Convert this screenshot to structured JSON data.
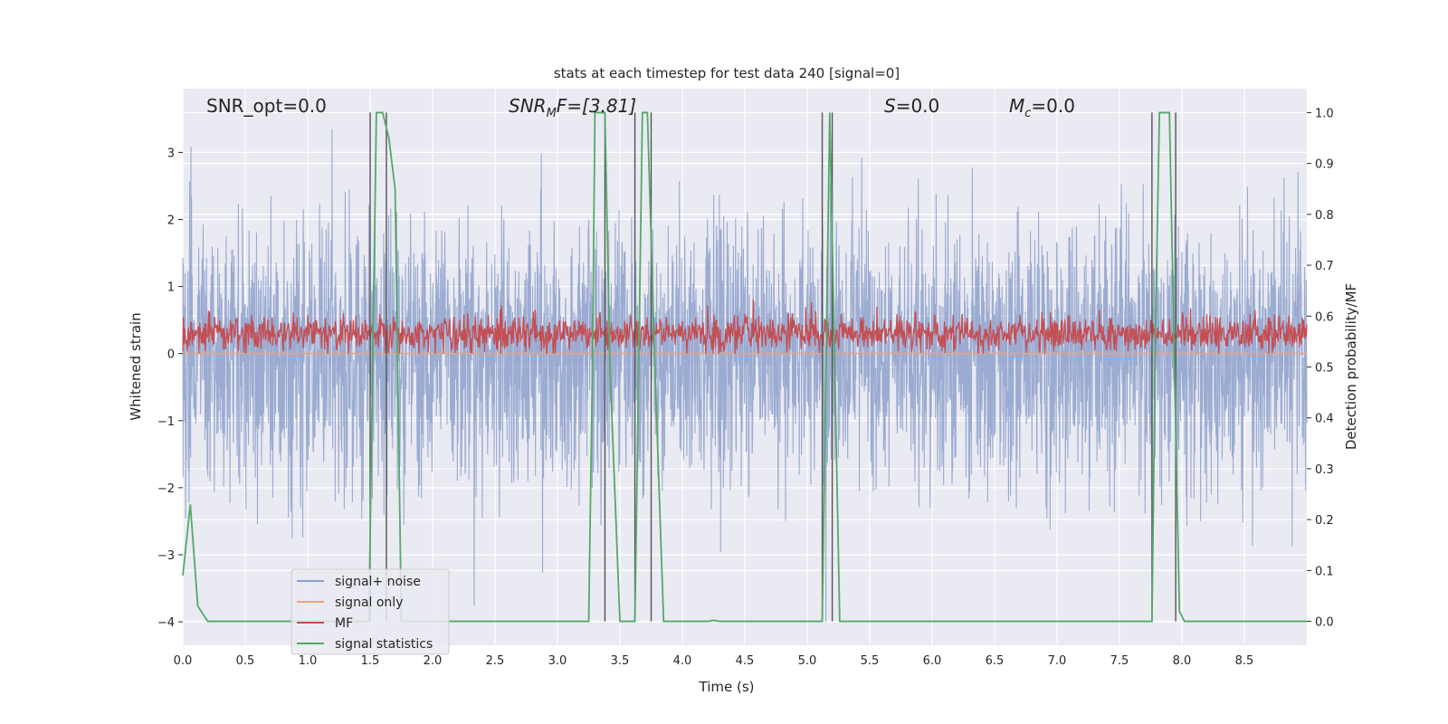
{
  "chart_data": {
    "type": "line",
    "title": "stats at each timestep for test data 240 [signal=0]",
    "xlabel": "Time (s)",
    "ylabel_left": "Whitened strain",
    "ylabel_right": "Detection probability/MF",
    "xlim": [
      0.0,
      9.0
    ],
    "ylim_left": [
      -4.35,
      3.95
    ],
    "ylim_right": [
      -0.047,
      1.047
    ],
    "x_ticks": [
      "0.0",
      "0.5",
      "1.0",
      "1.5",
      "2.0",
      "2.5",
      "3.0",
      "3.5",
      "4.0",
      "4.5",
      "5.0",
      "5.5",
      "6.0",
      "6.5",
      "7.0",
      "7.5",
      "8.0",
      "8.5"
    ],
    "y_ticks_left": [
      "−4",
      "−3",
      "−2",
      "−1",
      "0",
      "1",
      "2",
      "3"
    ],
    "y_ticks_right": [
      "0.0",
      "0.1",
      "0.2",
      "0.3",
      "0.4",
      "0.5",
      "0.6",
      "0.7",
      "0.8",
      "0.9",
      "1.0"
    ],
    "grid": true,
    "legend_position": "lower-left",
    "annotations": {
      "snr_opt": "SNR_opt=0.0",
      "snr_mf_base": "SNR",
      "snr_mf_sub": "M",
      "snr_mf_rest": "F=[3.81]",
      "s_var": "S",
      "s_rest": "=0.0",
      "mc_base": "M",
      "mc_sub": "c",
      "mc_rest": "=0.0"
    },
    "series": [
      {
        "name": "signal+ noise",
        "color": "#8da0cb",
        "axis": "left",
        "noise_std": 1.0,
        "description_values": "white noise, approx range -4 to 3.3"
      },
      {
        "name": "signal only",
        "color": "#e8a488",
        "axis": "left",
        "values_constant": 0.0
      },
      {
        "name": "MF",
        "color": "#c44e52",
        "axis": "left",
        "mean": 0.3,
        "range": [
          0.0,
          0.95
        ]
      },
      {
        "name": "signal statistics",
        "color": "#55a868",
        "axis": "right",
        "x": [
          0.0,
          0.06,
          0.12,
          0.2,
          0.5,
          1.0,
          1.49,
          1.52,
          1.55,
          1.6,
          1.65,
          1.7,
          1.75,
          1.8,
          2.5,
          3.25,
          3.28,
          3.3,
          3.38,
          3.42,
          3.5,
          3.62,
          3.65,
          3.68,
          3.72,
          3.78,
          3.85,
          3.9,
          4.2,
          4.25,
          4.3,
          5.12,
          5.15,
          5.18,
          5.22,
          5.26,
          5.3,
          6.0,
          7.76,
          7.79,
          7.82,
          7.9,
          7.94,
          7.98,
          8.02,
          8.1,
          9.0
        ],
        "y": [
          0.09,
          0.23,
          0.03,
          0.0,
          0.0,
          0.0,
          0.0,
          0.5,
          1.0,
          1.0,
          0.95,
          0.85,
          0.0,
          0.0,
          0.0,
          0.0,
          0.5,
          1.0,
          1.0,
          0.5,
          0.0,
          0.0,
          0.5,
          1.0,
          1.0,
          0.5,
          0.0,
          0.0,
          0.0,
          0.002,
          0.0,
          0.0,
          0.5,
          1.0,
          0.5,
          0.0,
          0.0,
          0.0,
          0.0,
          0.6,
          1.0,
          1.0,
          0.5,
          0.02,
          0.0,
          0.0,
          0.0
        ]
      }
    ],
    "vertical_markers_x": [
      1.5,
      1.63,
      3.38,
      3.62,
      3.75,
      5.12,
      5.2,
      7.76,
      7.95
    ],
    "vertical_marker_color": "#555555"
  }
}
